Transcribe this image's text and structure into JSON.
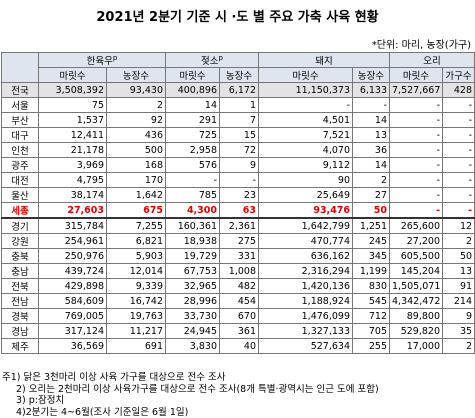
{
  "title": "2021년 2분기 기준 시 ·도 별 주요 가축 사육 현황",
  "unit": "*단위: 마리, 농장(가구)",
  "table": {
    "groups": [
      {
        "name": "한육우",
        "mark": "p"
      },
      {
        "name": "젖소",
        "mark": "p"
      },
      {
        "name": "돼지"
      },
      {
        "name": "오리"
      }
    ],
    "subheaders": [
      "마릿수",
      "농장수",
      "마릿수",
      "농장수",
      "마릿수",
      "농장수",
      "마릿수",
      "가구수"
    ],
    "rows": [
      [
        "전국",
        "3,508,392",
        "93,430",
        "400,896",
        "6,172",
        "11,150,373",
        "6,133",
        "7,527,667",
        "428"
      ],
      [
        "서울",
        "75",
        "2",
        "14",
        "1",
        "-",
        "-",
        "-",
        "-"
      ],
      [
        "부산",
        "1,537",
        "92",
        "291",
        "7",
        "4,501",
        "14",
        "-",
        "-"
      ],
      [
        "대구",
        "12,411",
        "436",
        "725",
        "15",
        "7,521",
        "13",
        "-",
        "-"
      ],
      [
        "인천",
        "21,178",
        "500",
        "2,958",
        "72",
        "4,070",
        "36",
        "-",
        "-"
      ],
      [
        "광주",
        "3,969",
        "168",
        "576",
        "9",
        "9,112",
        "14",
        "-",
        "-"
      ],
      [
        "대전",
        "4,795",
        "170",
        "-",
        "-",
        "90",
        "2",
        "-",
        "-"
      ],
      [
        "울산",
        "38,174",
        "1,642",
        "785",
        "23",
        "25,649",
        "27",
        "-",
        "-"
      ],
      [
        "세종",
        "27,603",
        "675",
        "4,300",
        "63",
        "93,476",
        "50",
        "-",
        "-"
      ],
      [
        "경기",
        "315,784",
        "7,255",
        "160,361",
        "2,361",
        "1,642,799",
        "1,251",
        "265,600",
        "12"
      ],
      [
        "강원",
        "254,961",
        "6,821",
        "18,938",
        "275",
        "470,774",
        "245",
        "27,200",
        "2"
      ],
      [
        "충북",
        "250,976",
        "5,903",
        "19,729",
        "331",
        "636,162",
        "345",
        "605,500",
        "50"
      ],
      [
        "충남",
        "439,724",
        "12,014",
        "67,753",
        "1,008",
        "2,316,294",
        "1,199",
        "145,204",
        "13"
      ],
      [
        "전북",
        "429,898",
        "9,339",
        "32,965",
        "482",
        "1,420,136",
        "830",
        "1,505,071",
        "91"
      ],
      [
        "전남",
        "584,609",
        "16,742",
        "28,996",
        "454",
        "1,188,924",
        "545",
        "4,342,472",
        "214"
      ],
      [
        "경북",
        "769,005",
        "19,763",
        "33,730",
        "670",
        "1,476,099",
        "712",
        "89,800",
        "9"
      ],
      [
        "경남",
        "317,124",
        "11,217",
        "24,945",
        "361",
        "1,327,133",
        "705",
        "529,820",
        "35"
      ],
      [
        "제주",
        "36,569",
        "691",
        "3,830",
        "40",
        "527,634",
        "255",
        "17,000",
        "2"
      ]
    ]
  },
  "notes": [
    "주1) 닭은 3천마리 이상 사육 가구를 대상으로 전수 조사",
    "2) 오리는 2천마리 이상 사육가구를 대상으로 전수 조사(8개 특별·광역시는 인근 도에 포함)",
    "3) p:잠정치",
    "4)2분기는 4~6월(조사 기준일은 6월 1일)"
  ]
}
